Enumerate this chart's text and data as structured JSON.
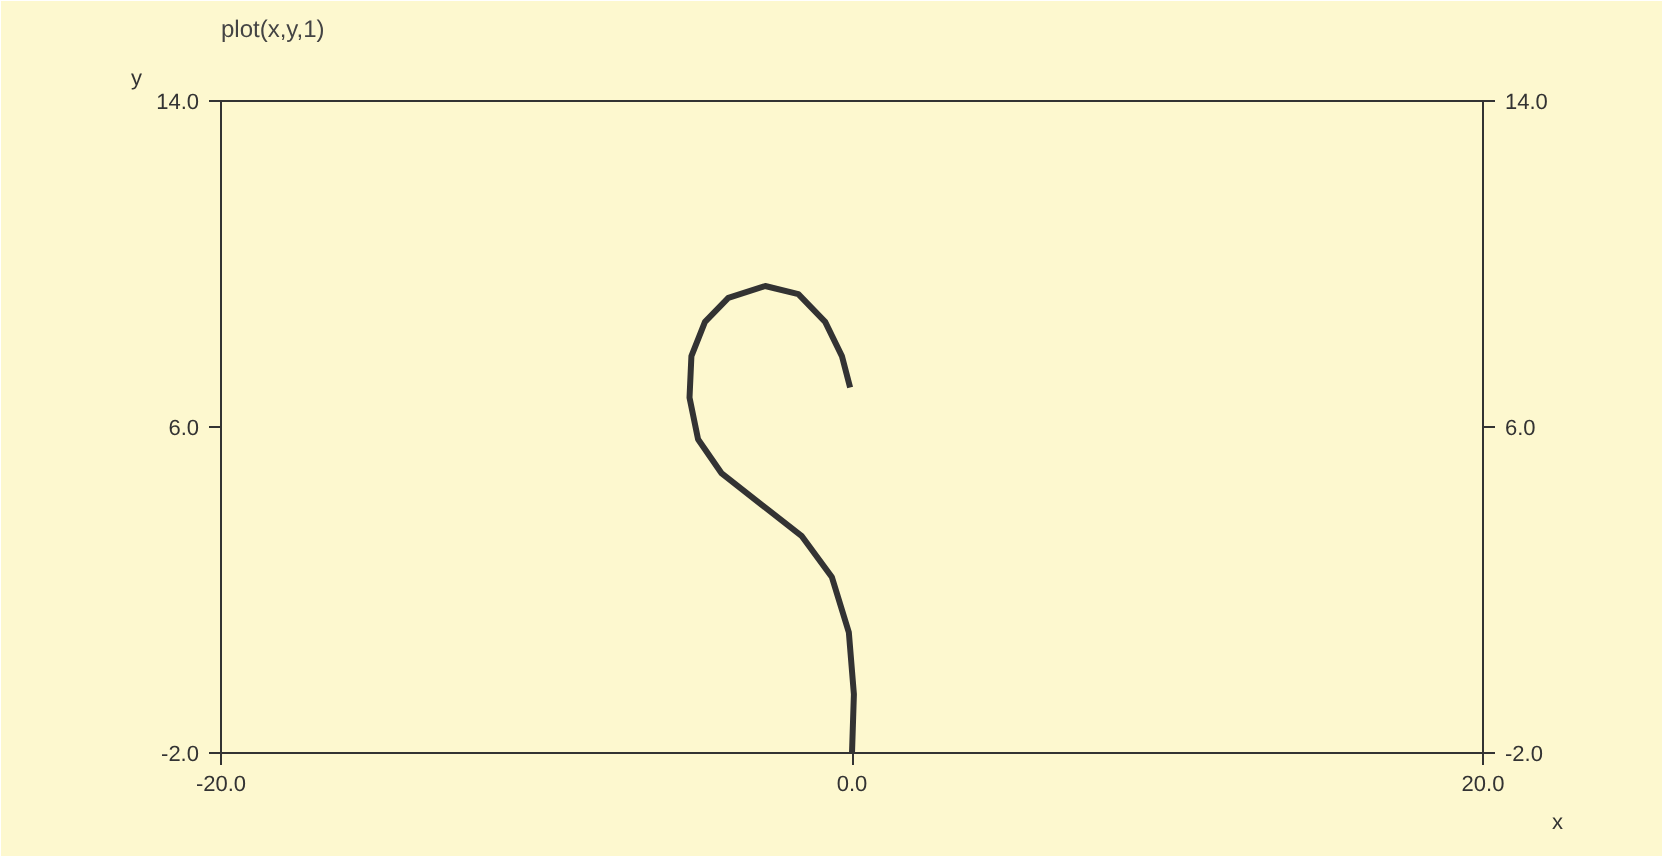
{
  "chart_data": {
    "type": "line",
    "title": "plot(x,y,1)",
    "xlabel": "x",
    "ylabel": "y",
    "x": [
      0,
      0.06,
      -0.1,
      -0.64,
      -1.6,
      -2.86,
      -4.13,
      -4.88,
      -5.15,
      -5.09,
      -4.66,
      -3.92,
      -2.75,
      -1.7,
      -0.85,
      -0.32,
      -0.06
    ],
    "series": [
      {
        "color": "#333333",
        "values": [
          -2,
          -0.56,
          0.96,
          2.32,
          3.33,
          4.09,
          4.86,
          5.7,
          6.72,
          7.74,
          8.58,
          9.17,
          9.46,
          9.26,
          8.58,
          7.74,
          6.97
        ]
      }
    ],
    "xlim": [
      -20,
      20
    ],
    "xticks": [
      {
        "value": -20,
        "label": "-20.0"
      },
      {
        "value": 0,
        "label": "0.0"
      },
      {
        "value": 20,
        "label": "20.0"
      }
    ],
    "ylim": [
      -2,
      14
    ],
    "yticks": [
      {
        "value": -2,
        "label": "-2.0"
      },
      {
        "value": 6,
        "label": "6.0"
      },
      {
        "value": 14,
        "label": "14.0"
      }
    ],
    "y2lim": [
      -2,
      14
    ],
    "y2ticks": [
      {
        "value": -2,
        "label": "-2.0"
      },
      {
        "value": 6,
        "label": "6.0"
      },
      {
        "value": 14,
        "label": "14.0"
      }
    ],
    "marker": "none",
    "line_style": "solid"
  }
}
